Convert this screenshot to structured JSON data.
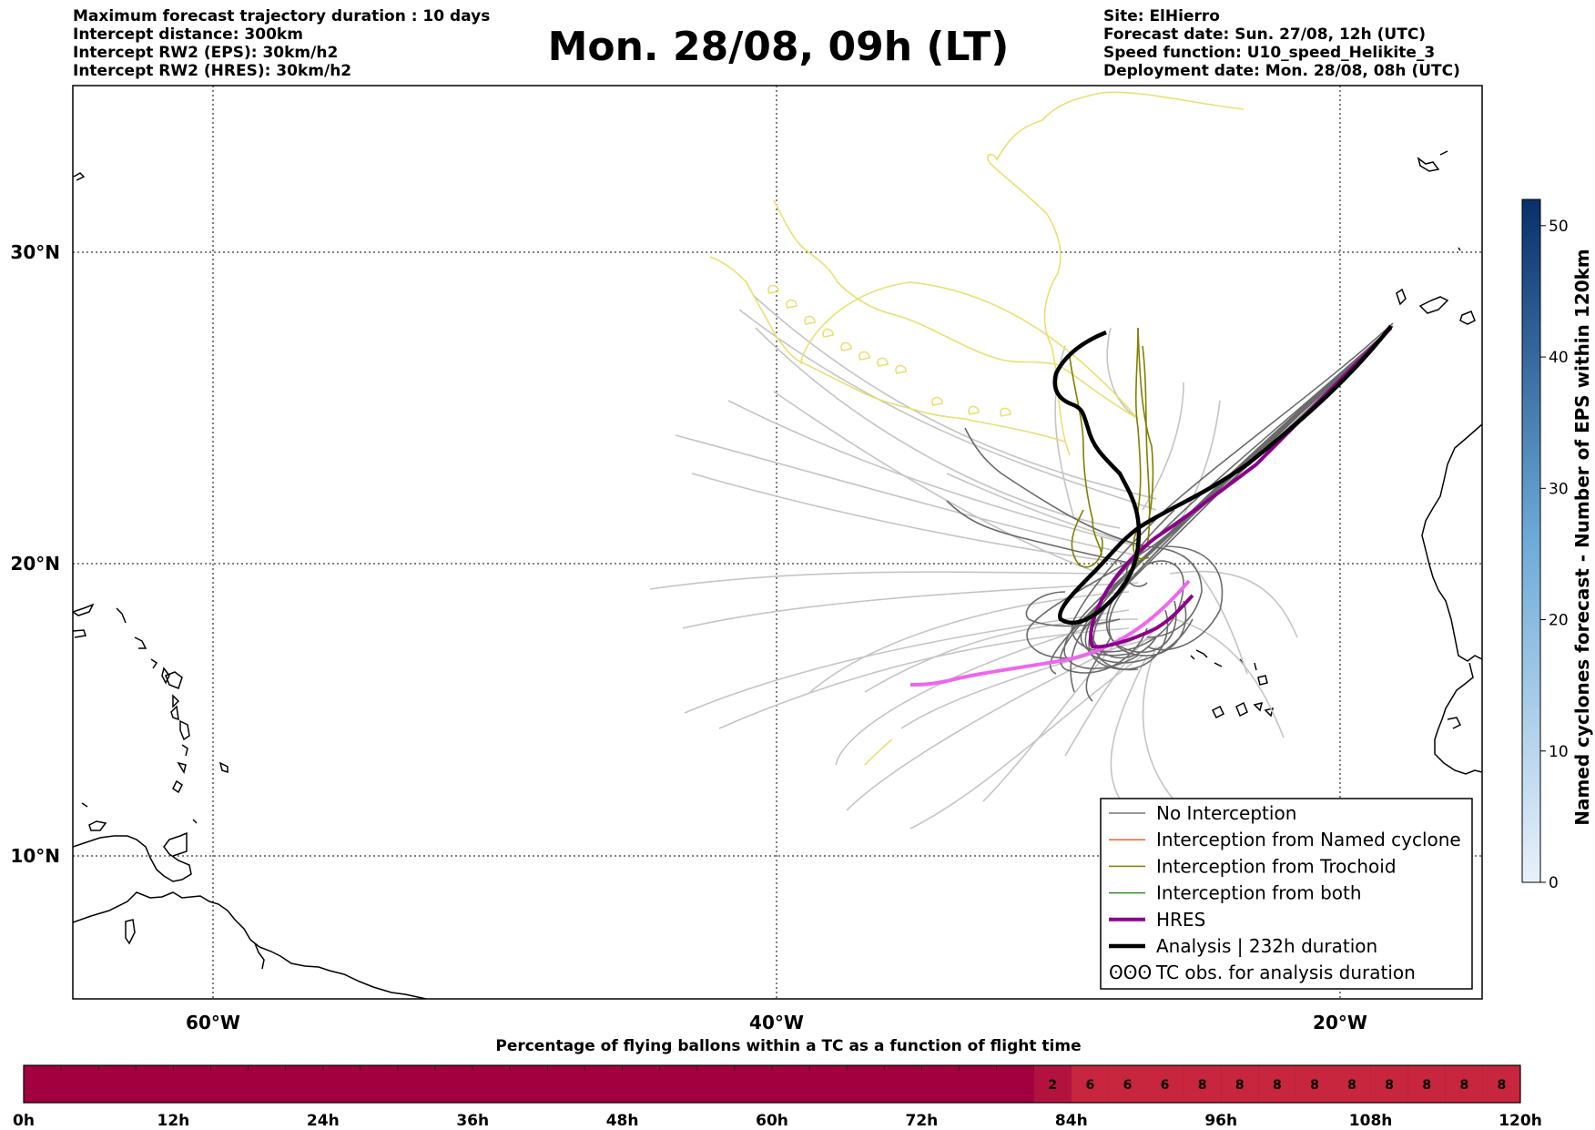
{
  "header": {
    "left_lines": [
      "Maximum forecast trajectory duration : 10 days",
      "Intercept distance: 300km",
      "Intercept RW2 (EPS):  30km/h2",
      "Intercept RW2 (HRES): 30km/h2"
    ],
    "title": "Mon. 28/08, 09h (LT)",
    "right_lines": [
      "Site: ElHierro",
      "Forecast date: Sun. 27/08, 12h (UTC)",
      "Speed function: U10_speed_Helikite_3",
      "Deployment date: Mon. 28/08, 08h (UTC)"
    ]
  },
  "map": {
    "lon_labels": [
      "60°W",
      "40°W",
      "20°W"
    ],
    "lat_labels": [
      "30°N",
      "20°N",
      "10°N"
    ],
    "legend": [
      {
        "label": "No Interception",
        "color": "#777777"
      },
      {
        "label": "Interception from Named cyclone",
        "color": "#e8602c"
      },
      {
        "label": "Interception from Trochoid",
        "color": "#808000"
      },
      {
        "label": "Interception from both",
        "color": "#2e8b2e"
      },
      {
        "label": "HRES",
        "color": "#8b008b"
      },
      {
        "label": "Analysis | 232h duration",
        "color": "#000000"
      },
      {
        "label": "TC obs. for analysis duration",
        "color": "#000000"
      }
    ],
    "tc_obs_symbol": "ʘʘʘ"
  },
  "colorbar": {
    "title": "Named cyclones forecast - Number of EPS within 120km",
    "ticks": [
      "0",
      "10",
      "20",
      "30",
      "40",
      "50"
    ],
    "max_value": 52
  },
  "bottom_bar": {
    "title": "Percentage of flying ballons within a TC as a function of flight time",
    "tick_labels": [
      "0h",
      "12h",
      "24h",
      "36h",
      "48h",
      "60h",
      "72h",
      "84h",
      "96h",
      "108h",
      "120h"
    ],
    "value_labels": [
      "2",
      "6",
      "6",
      "6",
      "8",
      "8",
      "8",
      "8",
      "8",
      "8",
      "8",
      "8",
      "8"
    ],
    "colors": {
      "base": "#a2003f",
      "labelled": "#c8253f"
    }
  }
}
